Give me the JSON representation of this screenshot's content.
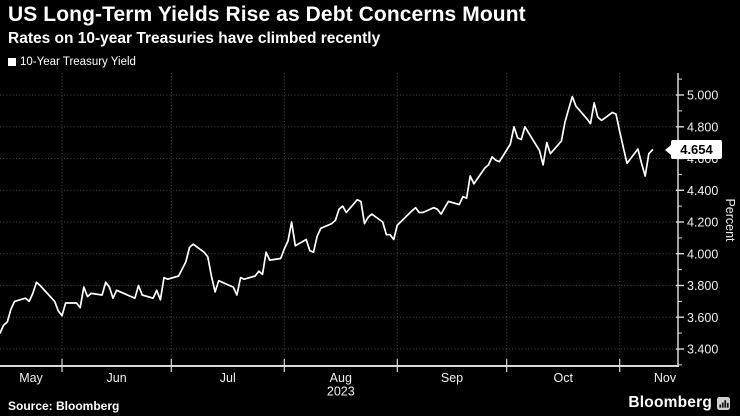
{
  "header": {
    "title": "US Long-Term Yields Rise as Debt Concerns Mount",
    "subtitle": "Rates on 10-year Treasuries have climbed recently"
  },
  "legend": {
    "marker_icon": "series-swatch-square",
    "marker_color": "#ffffff",
    "label": "10-Year Treasury Yield"
  },
  "footer": {
    "source": "Source: Bloomberg",
    "brand": "Bloomberg",
    "brand_icon": "bar-chart-icon"
  },
  "colors": {
    "background": "#000000",
    "line": "#ffffff",
    "grid": "#4a4a4a",
    "axis": "#d8d8d8",
    "tick_text": "#f0f0f0",
    "badge_bg": "#ffffff",
    "badge_text": "#000000"
  },
  "chart_data": {
    "type": "line",
    "series_name": "10-Year Treasury Yield",
    "title": "US Long-Term Yields Rise as Debt Concerns Mount",
    "subtitle": "Rates on 10-year Treasuries have climbed recently",
    "ylabel": "Percent",
    "legend_position": "top-left",
    "grid": "dotted",
    "x_axis_start": "2023-05-15",
    "x_axis_end": "2023-11-17",
    "x_tick_labels": [
      "May",
      "Jun",
      "Jul",
      "Aug",
      "Sep",
      "Oct",
      "Nov"
    ],
    "year_label": "2023",
    "year_label_under": "Aug",
    "y_ticks": [
      {
        "value": 3.4,
        "label": "3.400"
      },
      {
        "value": 3.6,
        "label": "3.600"
      },
      {
        "value": 3.8,
        "label": "3.800"
      },
      {
        "value": 4.0,
        "label": "4.000"
      },
      {
        "value": 4.2,
        "label": "4.200"
      },
      {
        "value": 4.4,
        "label": "4.400"
      },
      {
        "value": 4.6,
        "label": "4.600"
      },
      {
        "value": 4.8,
        "label": "4.800"
      },
      {
        "value": 5.0,
        "label": "5.000"
      }
    ],
    "y_minor_step": 0.1,
    "ylim": [
      3.29,
      5.14
    ],
    "last_value_label": "4.654",
    "points": [
      [
        "2023-05-15",
        3.5
      ],
      [
        "2023-05-16",
        3.55
      ],
      [
        "2023-05-17",
        3.57
      ],
      [
        "2023-05-18",
        3.65
      ],
      [
        "2023-05-19",
        3.7
      ],
      [
        "2023-05-22",
        3.72
      ],
      [
        "2023-05-23",
        3.7
      ],
      [
        "2023-05-24",
        3.75
      ],
      [
        "2023-05-25",
        3.82
      ],
      [
        "2023-05-26",
        3.8
      ],
      [
        "2023-05-30",
        3.7
      ],
      [
        "2023-05-31",
        3.64
      ],
      [
        "2023-06-01",
        3.61
      ],
      [
        "2023-06-02",
        3.69
      ],
      [
        "2023-06-05",
        3.69
      ],
      [
        "2023-06-06",
        3.66
      ],
      [
        "2023-06-07",
        3.79
      ],
      [
        "2023-06-08",
        3.73
      ],
      [
        "2023-06-09",
        3.75
      ],
      [
        "2023-06-12",
        3.74
      ],
      [
        "2023-06-13",
        3.82
      ],
      [
        "2023-06-14",
        3.79
      ],
      [
        "2023-06-15",
        3.72
      ],
      [
        "2023-06-16",
        3.77
      ],
      [
        "2023-06-20",
        3.73
      ],
      [
        "2023-06-21",
        3.72
      ],
      [
        "2023-06-22",
        3.8
      ],
      [
        "2023-06-23",
        3.74
      ],
      [
        "2023-06-26",
        3.72
      ],
      [
        "2023-06-27",
        3.77
      ],
      [
        "2023-06-28",
        3.71
      ],
      [
        "2023-06-29",
        3.85
      ],
      [
        "2023-06-30",
        3.84
      ],
      [
        "2023-07-03",
        3.86
      ],
      [
        "2023-07-05",
        3.95
      ],
      [
        "2023-07-06",
        4.04
      ],
      [
        "2023-07-07",
        4.06
      ],
      [
        "2023-07-10",
        4.01
      ],
      [
        "2023-07-11",
        3.98
      ],
      [
        "2023-07-12",
        3.86
      ],
      [
        "2023-07-13",
        3.76
      ],
      [
        "2023-07-14",
        3.83
      ],
      [
        "2023-07-17",
        3.8
      ],
      [
        "2023-07-18",
        3.79
      ],
      [
        "2023-07-19",
        3.74
      ],
      [
        "2023-07-20",
        3.85
      ],
      [
        "2023-07-21",
        3.84
      ],
      [
        "2023-07-24",
        3.86
      ],
      [
        "2023-07-25",
        3.89
      ],
      [
        "2023-07-26",
        3.87
      ],
      [
        "2023-07-27",
        4.01
      ],
      [
        "2023-07-28",
        3.96
      ],
      [
        "2023-07-31",
        3.97
      ],
      [
        "2023-08-01",
        4.03
      ],
      [
        "2023-08-02",
        4.08
      ],
      [
        "2023-08-03",
        4.2
      ],
      [
        "2023-08-04",
        4.05
      ],
      [
        "2023-08-07",
        4.09
      ],
      [
        "2023-08-08",
        4.02
      ],
      [
        "2023-08-09",
        4.01
      ],
      [
        "2023-08-10",
        4.11
      ],
      [
        "2023-08-11",
        4.16
      ],
      [
        "2023-08-14",
        4.19
      ],
      [
        "2023-08-15",
        4.21
      ],
      [
        "2023-08-16",
        4.28
      ],
      [
        "2023-08-17",
        4.3
      ],
      [
        "2023-08-18",
        4.26
      ],
      [
        "2023-08-21",
        4.34
      ],
      [
        "2023-08-22",
        4.33
      ],
      [
        "2023-08-23",
        4.19
      ],
      [
        "2023-08-24",
        4.23
      ],
      [
        "2023-08-25",
        4.25
      ],
      [
        "2023-08-28",
        4.2
      ],
      [
        "2023-08-29",
        4.12
      ],
      [
        "2023-08-30",
        4.12
      ],
      [
        "2023-08-31",
        4.09
      ],
      [
        "2023-09-01",
        4.18
      ],
      [
        "2023-09-05",
        4.27
      ],
      [
        "2023-09-06",
        4.29
      ],
      [
        "2023-09-07",
        4.26
      ],
      [
        "2023-09-08",
        4.26
      ],
      [
        "2023-09-11",
        4.29
      ],
      [
        "2023-09-12",
        4.28
      ],
      [
        "2023-09-13",
        4.25
      ],
      [
        "2023-09-14",
        4.29
      ],
      [
        "2023-09-15",
        4.33
      ],
      [
        "2023-09-18",
        4.31
      ],
      [
        "2023-09-19",
        4.36
      ],
      [
        "2023-09-20",
        4.35
      ],
      [
        "2023-09-21",
        4.49
      ],
      [
        "2023-09-22",
        4.44
      ],
      [
        "2023-09-25",
        4.54
      ],
      [
        "2023-09-26",
        4.56
      ],
      [
        "2023-09-27",
        4.61
      ],
      [
        "2023-09-28",
        4.59
      ],
      [
        "2023-09-29",
        4.58
      ],
      [
        "2023-10-02",
        4.69
      ],
      [
        "2023-10-03",
        4.8
      ],
      [
        "2023-10-04",
        4.73
      ],
      [
        "2023-10-05",
        4.72
      ],
      [
        "2023-10-06",
        4.8
      ],
      [
        "2023-10-10",
        4.65
      ],
      [
        "2023-10-11",
        4.56
      ],
      [
        "2023-10-12",
        4.7
      ],
      [
        "2023-10-13",
        4.63
      ],
      [
        "2023-10-16",
        4.71
      ],
      [
        "2023-10-17",
        4.83
      ],
      [
        "2023-10-18",
        4.91
      ],
      [
        "2023-10-19",
        4.99
      ],
      [
        "2023-10-20",
        4.93
      ],
      [
        "2023-10-23",
        4.85
      ],
      [
        "2023-10-24",
        4.82
      ],
      [
        "2023-10-25",
        4.95
      ],
      [
        "2023-10-26",
        4.86
      ],
      [
        "2023-10-27",
        4.84
      ],
      [
        "2023-10-30",
        4.89
      ],
      [
        "2023-10-31",
        4.88
      ],
      [
        "2023-11-01",
        4.77
      ],
      [
        "2023-11-02",
        4.67
      ],
      [
        "2023-11-03",
        4.57
      ],
      [
        "2023-11-06",
        4.66
      ],
      [
        "2023-11-07",
        4.57
      ],
      [
        "2023-11-08",
        4.49
      ],
      [
        "2023-11-09",
        4.63
      ],
      [
        "2023-11-10",
        4.654
      ]
    ]
  }
}
